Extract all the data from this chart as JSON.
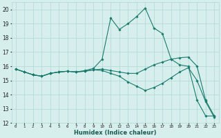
{
  "title": "",
  "xlabel": "Humidex (Indice chaleur)",
  "background_color": "#d6efec",
  "grid_color": "#b0d8d3",
  "line_color": "#1a7a6e",
  "hours": [
    0,
    1,
    2,
    3,
    4,
    5,
    6,
    7,
    8,
    9,
    10,
    11,
    12,
    13,
    14,
    15,
    16,
    17,
    18,
    19,
    20,
    21,
    22,
    23
  ],
  "curve1": [
    15.8,
    15.6,
    15.4,
    15.3,
    15.5,
    15.6,
    15.65,
    15.6,
    15.7,
    15.85,
    16.5,
    19.4,
    18.6,
    19.0,
    19.5,
    20.1,
    18.7,
    18.3,
    16.5,
    16.1,
    16.0,
    13.6,
    12.5,
    12.5
  ],
  "curve2": [
    15.8,
    15.6,
    15.4,
    15.3,
    15.5,
    15.6,
    15.65,
    15.6,
    15.65,
    15.75,
    15.8,
    15.7,
    15.6,
    15.5,
    15.5,
    15.8,
    16.1,
    16.3,
    16.5,
    16.6,
    16.65,
    16.0,
    13.6,
    12.5
  ],
  "curve3": [
    15.8,
    15.6,
    15.4,
    15.3,
    15.5,
    15.6,
    15.65,
    15.6,
    15.65,
    15.75,
    15.7,
    15.5,
    15.3,
    14.9,
    14.6,
    14.3,
    14.5,
    14.8,
    15.2,
    15.6,
    15.9,
    15.0,
    13.5,
    12.4
  ],
  "ylim": [
    12,
    20.5
  ],
  "xlim": [
    -0.5,
    23.5
  ],
  "yticks": [
    12,
    13,
    14,
    15,
    16,
    17,
    18,
    19,
    20
  ],
  "xticks": [
    0,
    1,
    2,
    3,
    4,
    5,
    6,
    7,
    8,
    9,
    10,
    11,
    12,
    13,
    14,
    15,
    16,
    17,
    18,
    19,
    20,
    21,
    22,
    23
  ]
}
